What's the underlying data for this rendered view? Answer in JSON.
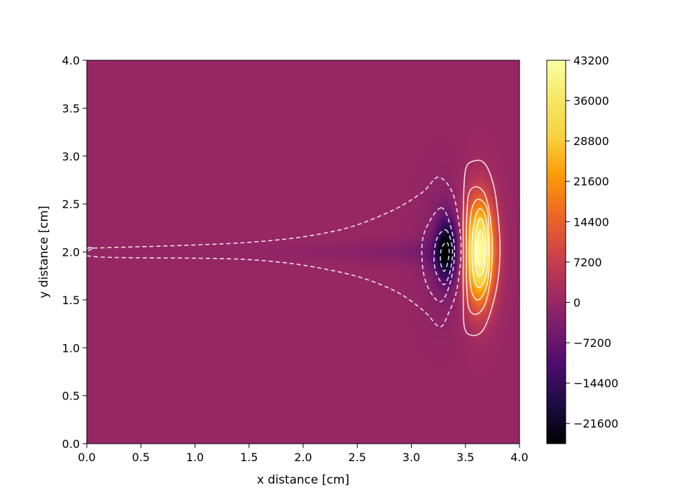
{
  "chart_data": {
    "type": "heatmap",
    "title": "",
    "xlabel": "x distance [cm]",
    "ylabel": "y distance [cm]",
    "xlim": [
      0.0,
      4.0
    ],
    "ylim": [
      0.0,
      4.0
    ],
    "x_ticks": [
      "0.0",
      "0.5",
      "1.0",
      "1.5",
      "2.0",
      "2.5",
      "3.0",
      "3.5",
      "4.0"
    ],
    "y_ticks": [
      "0.0",
      "0.5",
      "1.0",
      "1.5",
      "2.0",
      "2.5",
      "3.0",
      "3.5",
      "4.0"
    ],
    "colormap": "inferno",
    "colorbar": {
      "range": [
        -25200,
        43200
      ],
      "ticks": [
        "43200",
        "36000",
        "28800",
        "21600",
        "14400",
        "7200",
        "0",
        "−7200",
        "−14400",
        "−21600"
      ]
    },
    "field": {
      "background": 0,
      "positive_peak": {
        "x": 3.63,
        "y": 2.0,
        "value": 43200
      },
      "negative_peak": {
        "x": 3.33,
        "y": 2.02,
        "value": -25200
      }
    },
    "contours": {
      "positive_line_style": "solid",
      "negative_line_style": "dashed",
      "line_color": "#ffffff",
      "positive": [
        {
          "level": 3600,
          "points": [
            [
              3.58,
              2.95
            ],
            [
              3.68,
              2.92
            ],
            [
              3.76,
              2.7
            ],
            [
              3.8,
              2.4
            ],
            [
              3.82,
              2.05
            ],
            [
              3.8,
              1.7
            ],
            [
              3.74,
              1.4
            ],
            [
              3.66,
              1.18
            ],
            [
              3.56,
              1.13
            ],
            [
              3.49,
              1.22
            ],
            [
              3.48,
              1.6
            ],
            [
              3.48,
              2.0
            ],
            [
              3.48,
              2.4
            ],
            [
              3.5,
              2.85
            ]
          ]
        },
        {
          "level": 10800,
          "points": [
            [
              3.6,
              2.68
            ],
            [
              3.68,
              2.6
            ],
            [
              3.73,
              2.35
            ],
            [
              3.75,
              2.02
            ],
            [
              3.73,
              1.7
            ],
            [
              3.68,
              1.45
            ],
            [
              3.6,
              1.35
            ],
            [
              3.53,
              1.42
            ],
            [
              3.51,
              1.7
            ],
            [
              3.51,
              2.0
            ],
            [
              3.51,
              2.3
            ],
            [
              3.53,
              2.6
            ]
          ]
        },
        {
          "level": 18000,
          "points": [
            [
              3.62,
              2.55
            ],
            [
              3.7,
              2.45
            ],
            [
              3.72,
              2.15
            ],
            [
              3.72,
              1.85
            ],
            [
              3.69,
              1.62
            ],
            [
              3.62,
              1.5
            ],
            [
              3.56,
              1.58
            ],
            [
              3.54,
              1.8
            ],
            [
              3.54,
              2.2
            ],
            [
              3.56,
              2.45
            ]
          ]
        },
        {
          "level": 25200,
          "points": [
            [
              3.63,
              2.45
            ],
            [
              3.69,
              2.35
            ],
            [
              3.71,
              2.05
            ],
            [
              3.69,
              1.75
            ],
            [
              3.63,
              1.63
            ],
            [
              3.58,
              1.72
            ],
            [
              3.56,
              2.0
            ],
            [
              3.58,
              2.3
            ]
          ]
        },
        {
          "level": 32400,
          "points": [
            [
              3.64,
              2.35
            ],
            [
              3.68,
              2.22
            ],
            [
              3.69,
              2.0
            ],
            [
              3.67,
              1.82
            ],
            [
              3.63,
              1.75
            ],
            [
              3.6,
              1.82
            ],
            [
              3.59,
              2.0
            ],
            [
              3.6,
              2.22
            ]
          ]
        },
        {
          "level": 39600,
          "points": [
            [
              3.64,
              2.22
            ],
            [
              3.67,
              2.1
            ],
            [
              3.67,
              1.92
            ],
            [
              3.64,
              1.85
            ],
            [
              3.61,
              1.92
            ],
            [
              3.61,
              2.1
            ]
          ]
        }
      ],
      "negative": [
        {
          "level": -3600,
          "points": [
            [
              0.06,
              2.04
            ],
            [
              1.5,
              2.1
            ],
            [
              2.3,
              2.22
            ],
            [
              2.8,
              2.42
            ],
            [
              3.1,
              2.62
            ],
            [
              3.25,
              2.78
            ],
            [
              3.38,
              2.62
            ],
            [
              3.44,
              2.3
            ],
            [
              3.46,
              2.0
            ],
            [
              3.42,
              1.6
            ],
            [
              3.34,
              1.35
            ],
            [
              3.26,
              1.22
            ],
            [
              3.1,
              1.4
            ],
            [
              2.8,
              1.62
            ],
            [
              2.3,
              1.8
            ],
            [
              1.5,
              1.92
            ],
            [
              0.08,
              1.95
            ],
            [
              0.06,
              2.04
            ]
          ]
        },
        {
          "level": -10800,
          "points": [
            [
              3.27,
              2.46
            ],
            [
              3.36,
              2.28
            ],
            [
              3.4,
              2.0
            ],
            [
              3.36,
              1.68
            ],
            [
              3.27,
              1.48
            ],
            [
              3.15,
              1.64
            ],
            [
              3.1,
              1.9
            ],
            [
              3.12,
              2.2
            ]
          ]
        },
        {
          "level": -18000,
          "points": [
            [
              3.32,
              2.23
            ],
            [
              3.37,
              2.1
            ],
            [
              3.38,
              1.95
            ],
            [
              3.35,
              1.76
            ],
            [
              3.3,
              1.66
            ],
            [
              3.23,
              1.78
            ],
            [
              3.21,
              1.95
            ],
            [
              3.24,
              2.15
            ]
          ]
        },
        {
          "level": -25200,
          "points": [
            [
              3.33,
              2.1
            ],
            [
              3.35,
              2.0
            ],
            [
              3.33,
              1.86
            ],
            [
              3.3,
              1.8
            ],
            [
              3.27,
              1.9
            ],
            [
              3.28,
              2.04
            ]
          ]
        }
      ]
    }
  }
}
